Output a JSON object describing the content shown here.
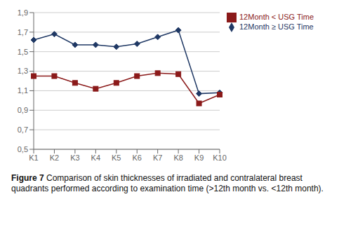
{
  "chart_data": {
    "type": "line",
    "categories": [
      "K1",
      "K2",
      "K3",
      "K4",
      "K5",
      "K6",
      "K7",
      "K8",
      "K9",
      "K10"
    ],
    "series": [
      {
        "name": "12Month ≥ USG Time",
        "color": "#1F3864",
        "marker": "diamond",
        "values": [
          1.62,
          1.68,
          1.57,
          1.57,
          1.55,
          1.58,
          1.65,
          1.72,
          1.07,
          1.08
        ]
      },
      {
        "name": "12Month < USG Time",
        "color": "#8B1A1A",
        "marker": "square",
        "values": [
          1.25,
          1.25,
          1.18,
          1.12,
          1.18,
          1.25,
          1.28,
          1.27,
          0.97,
          1.06
        ]
      }
    ],
    "ylim": [
      0.5,
      1.9
    ],
    "yticks": [
      {
        "value": 0.5,
        "label": "0,5"
      },
      {
        "value": 0.7,
        "label": "0,7"
      },
      {
        "value": 0.9,
        "label": "0,9"
      },
      {
        "value": 1.1,
        "label": "1,1"
      },
      {
        "value": 1.3,
        "label": "1,3"
      },
      {
        "value": 1.5,
        "label": "1,5"
      },
      {
        "value": 1.7,
        "label": "1,7"
      },
      {
        "value": 1.9,
        "label": "1,9"
      }
    ],
    "grid": true,
    "legend": "right",
    "caption_bold": "Figure 7",
    "caption": "Comparison of skin thicknesses of irradiated and contralateral breast quadrants performed according to examination time (>12th month vs. <12th month)."
  }
}
